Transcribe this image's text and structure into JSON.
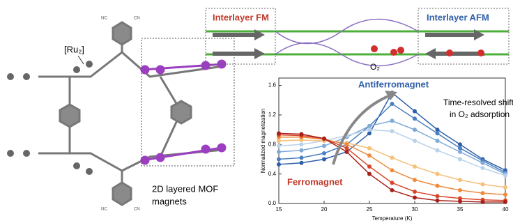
{
  "diagram": {
    "ru_label": "[Ru₂]",
    "cyano_nc": "NC",
    "cyano_cn": "CN",
    "caption_lines": [
      "2D layered MOF",
      "magnets"
    ]
  },
  "schematic": {
    "fm_label": "Interlayer FM",
    "afm_label": "Interlayer AFM",
    "o2_label": "O₂"
  },
  "chart_data": {
    "type": "line",
    "x_label": "Temperature (K)",
    "y_label": "Normalized magnetization",
    "annotations": {
      "afm": "Antiferromagnet",
      "fm": "Ferromagnet",
      "shift": [
        "Time-resolved shift",
        "in O₂ adsorption"
      ]
    },
    "x": [
      15,
      17.5,
      20,
      22.5,
      25,
      27.5,
      30,
      32.5,
      35,
      37.5,
      40
    ],
    "series": [
      {
        "color": "#2f5fa8",
        "values": [
          0.53,
          0.55,
          0.6,
          0.7,
          0.95,
          1.5,
          1.25,
          1.0,
          0.8,
          0.6,
          0.45
        ]
      },
      {
        "color": "#4a7fc0",
        "values": [
          0.6,
          0.62,
          0.68,
          0.8,
          1.05,
          1.35,
          1.15,
          0.95,
          0.75,
          0.58,
          0.42
        ]
      },
      {
        "color": "#7fa9d8",
        "values": [
          0.7,
          0.72,
          0.78,
          0.9,
          1.05,
          1.12,
          1.0,
          0.85,
          0.7,
          0.55,
          0.4
        ]
      },
      {
        "color": "#b9d2ea",
        "values": [
          0.78,
          0.8,
          0.85,
          0.92,
          1.0,
          0.98,
          0.85,
          0.72,
          0.6,
          0.48,
          0.38
        ]
      },
      {
        "color": "#f5c07a",
        "values": [
          0.85,
          0.86,
          0.85,
          0.82,
          0.75,
          0.62,
          0.5,
          0.4,
          0.32,
          0.26,
          0.22
        ]
      },
      {
        "color": "#f08a3c",
        "values": [
          0.9,
          0.9,
          0.87,
          0.8,
          0.65,
          0.45,
          0.32,
          0.24,
          0.18,
          0.14,
          0.12
        ]
      },
      {
        "color": "#d9452a",
        "values": [
          0.93,
          0.92,
          0.88,
          0.75,
          0.5,
          0.28,
          0.16,
          0.1,
          0.07,
          0.05,
          0.04
        ]
      },
      {
        "color": "#a8201a",
        "values": [
          0.95,
          0.94,
          0.88,
          0.7,
          0.4,
          0.18,
          0.08,
          0.04,
          0.03,
          0.02,
          0.02
        ]
      }
    ],
    "xlim": [
      15,
      40
    ],
    "xticks": [
      15,
      20,
      25,
      30,
      35,
      40
    ],
    "ylim": [
      0,
      1.7
    ],
    "yticks": [
      {
        "value": 0,
        "label": "0.0"
      },
      0.4,
      0.8,
      1.2,
      1.6
    ]
  }
}
